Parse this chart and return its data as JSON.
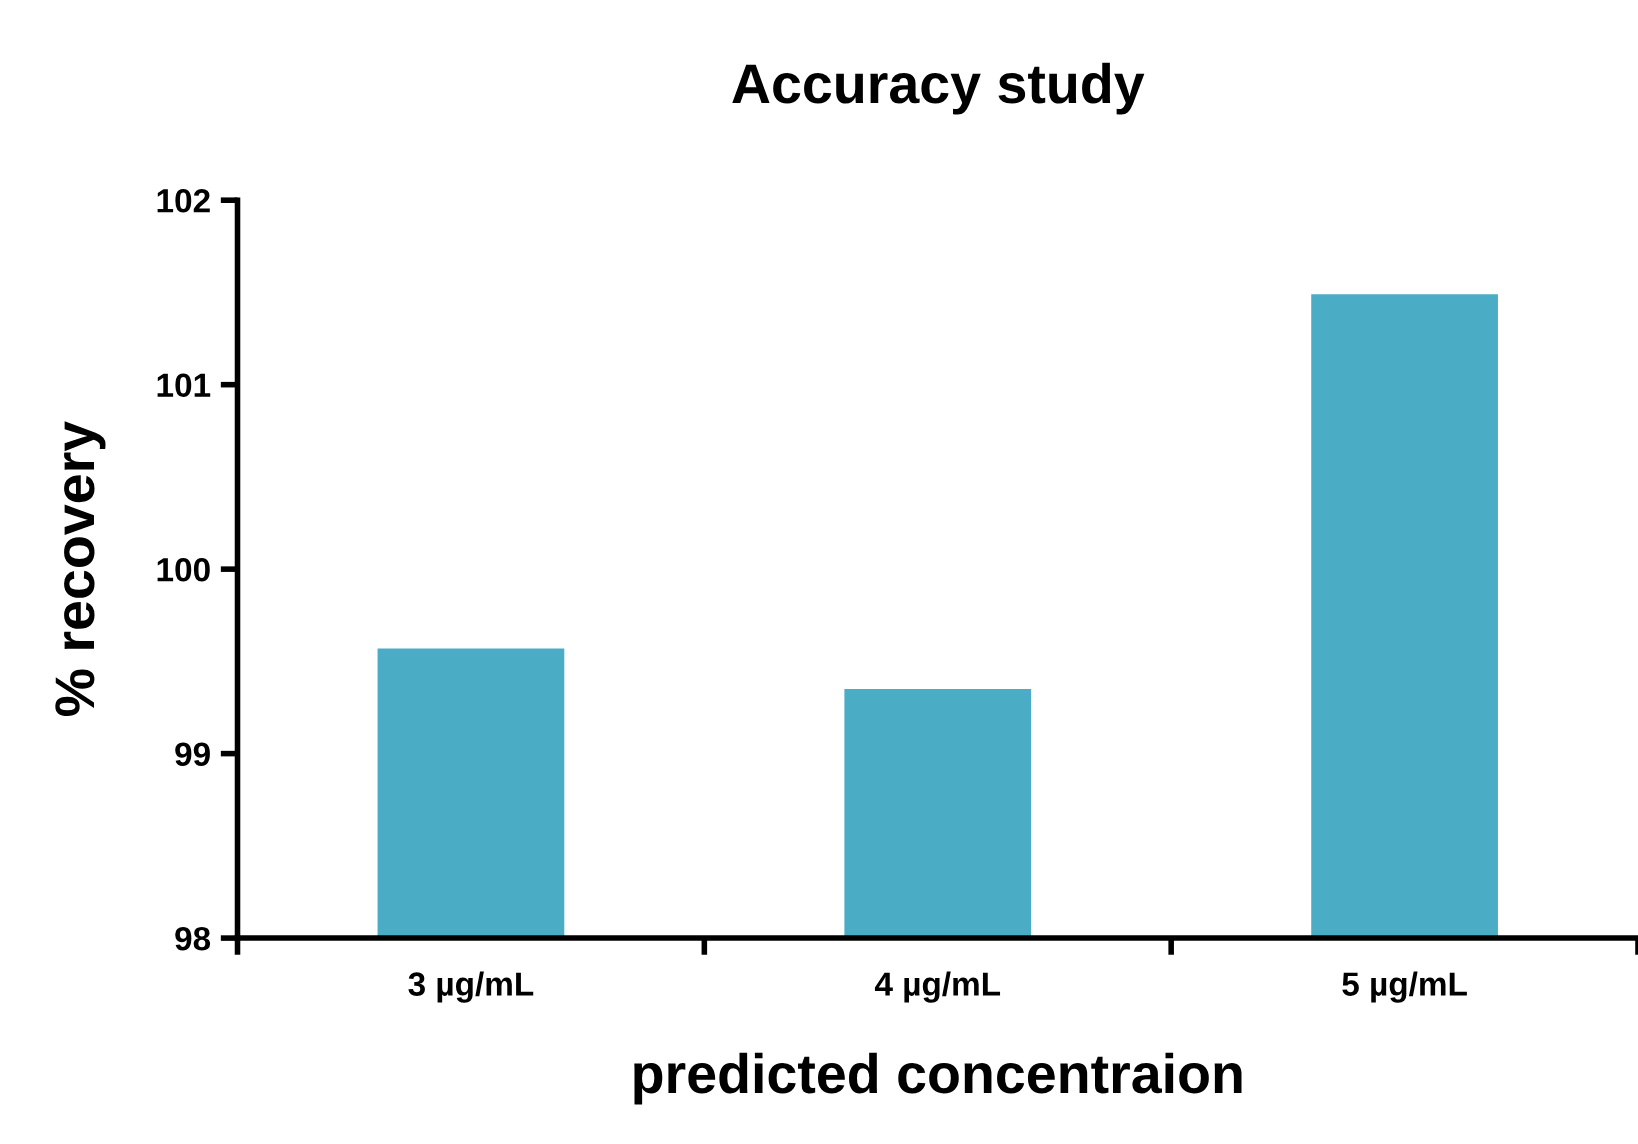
{
  "chart_data": {
    "type": "bar",
    "title": "Accuracy study",
    "xlabel": "predicted concentraion",
    "ylabel": "% recovery",
    "categories": [
      "3 µg/mL",
      "4 µg/mL",
      "5 µg/mL"
    ],
    "values": [
      99.57,
      99.35,
      101.49
    ],
    "color": "#4bacc6",
    "ylim": [
      98,
      102
    ],
    "yticks": [
      98,
      99,
      100,
      101,
      102
    ],
    "grid": false,
    "legend": false
  }
}
